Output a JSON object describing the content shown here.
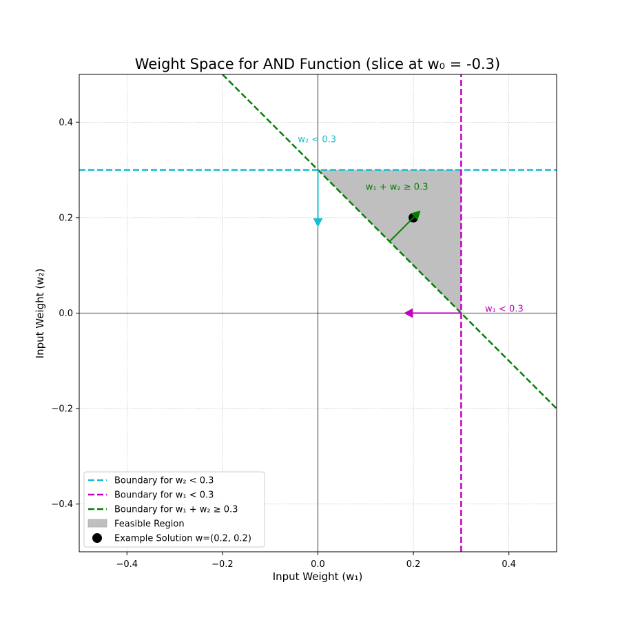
{
  "chart_data": {
    "type": "line",
    "title": "Weight Space for AND Function (slice at w₀ = -0.3)",
    "xlabel": "Input Weight (w₁)",
    "ylabel": "Input Weight (w₂)",
    "xlim": [
      -0.5,
      0.5
    ],
    "ylim": [
      -0.5,
      0.5
    ],
    "xticks": [
      -0.4,
      -0.2,
      0.0,
      0.2,
      0.4
    ],
    "yticks": [
      -0.4,
      -0.2,
      0.0,
      0.2,
      0.4
    ],
    "xtick_labels": [
      "−0.4",
      "−0.2",
      "0.0",
      "0.2",
      "0.4"
    ],
    "ytick_labels": [
      "−0.4",
      "−0.2",
      "0.0",
      "0.2",
      "0.4"
    ],
    "grid": true,
    "legend_position": "lower-left",
    "series": [
      {
        "name": "Boundary for w₂ < 0.3",
        "type": "line",
        "style": "dashed",
        "color": "#17becf",
        "x": [
          -0.5,
          0.5
        ],
        "y": [
          0.3,
          0.3
        ]
      },
      {
        "name": "Boundary for w₁ < 0.3",
        "type": "line",
        "style": "dashed",
        "color": "#bf00bf",
        "x": [
          0.3,
          0.3
        ],
        "y": [
          -0.5,
          0.5
        ]
      },
      {
        "name": "Boundary for w₁ + w₂ ≥ 0.3",
        "type": "line",
        "style": "dashed",
        "color": "#008000",
        "x": [
          -0.2,
          0.5
        ],
        "y": [
          0.5,
          -0.2
        ]
      },
      {
        "name": "Feasible Region",
        "type": "area",
        "color": "#bfbfbf",
        "x": [
          0.0,
          0.3,
          0.3
        ],
        "y": [
          0.3,
          0.3,
          0.0
        ]
      },
      {
        "name": "Example Solution w=(0.2, 0.2)",
        "type": "scatter",
        "color": "#000000",
        "x": [
          0.2
        ],
        "y": [
          0.2
        ]
      }
    ],
    "annotations": [
      {
        "text": "w₂ < 0.3",
        "color": "#17becf",
        "x": -0.042,
        "y": 0.358,
        "arrow_from": [
          0.0,
          0.3
        ],
        "arrow_to": [
          0.0,
          0.18
        ]
      },
      {
        "text": "w₁ < 0.3",
        "color": "#bf00bf",
        "x": 0.35,
        "y": 0.003,
        "arrow_from": [
          0.3,
          0.0
        ],
        "arrow_to": [
          0.18,
          0.0
        ]
      },
      {
        "text": "w₁ + w₂ ≥ 0.3",
        "color": "#008000",
        "x": 0.1,
        "y": 0.258,
        "arrow_from": [
          0.15,
          0.15
        ],
        "arrow_to": [
          0.215,
          0.215
        ]
      }
    ]
  }
}
